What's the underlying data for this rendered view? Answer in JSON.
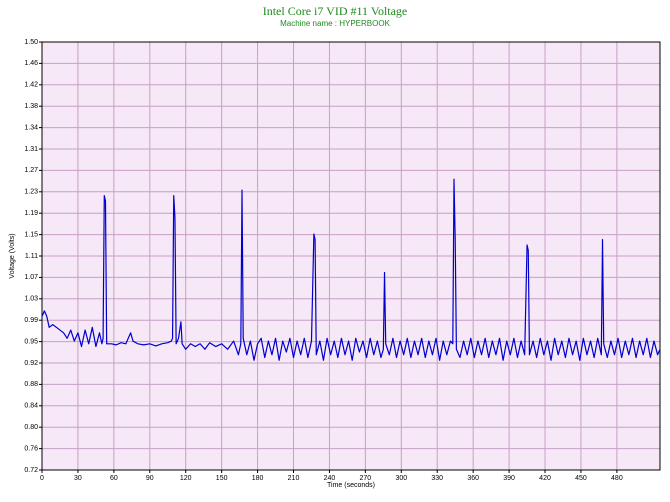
{
  "chart_data": {
    "type": "line",
    "title": "Intel Core i7 VID #11 Voltage",
    "subtitle": "Machine name : HYPERBOOK",
    "x_label": "Time (seconds)",
    "y_label": "Voltage (Volts)",
    "xlim": [
      0,
      516
    ],
    "ylim": [
      0.72,
      1.5
    ],
    "xticks": [
      0,
      30,
      60,
      90,
      120,
      150,
      180,
      210,
      240,
      270,
      300,
      330,
      360,
      390,
      420,
      450,
      480
    ],
    "yticks": [
      0.72,
      {
        "value": 0.759,
        "label": "0.76"
      },
      {
        "value": 0.798,
        "label": "0.80"
      },
      {
        "value": 0.837,
        "label": "0.84"
      },
      {
        "value": 0.876,
        "label": "0.88"
      },
      {
        "value": 0.915,
        "label": "0.92"
      },
      {
        "value": 0.954,
        "label": "0.95"
      },
      {
        "value": 0.993,
        "label": "0.99"
      },
      {
        "value": 1.032,
        "label": "1.03"
      },
      {
        "value": 1.071,
        "label": "1.07"
      },
      1.11,
      {
        "value": 1.149,
        "label": "1.15"
      },
      {
        "value": 1.188,
        "label": "1.19"
      },
      {
        "value": 1.227,
        "label": "1.23"
      },
      {
        "value": 1.266,
        "label": "1.27"
      },
      {
        "value": 1.305,
        "label": "1.31"
      },
      {
        "value": 1.344,
        "label": "1.34"
      },
      {
        "value": 1.383,
        "label": "1.38"
      },
      {
        "value": 1.422,
        "label": "1.42"
      },
      {
        "value": 1.461,
        "label": "1.46"
      },
      {
        "value": 1.5,
        "label": "1.50"
      }
    ],
    "grid": true,
    "background": "#f6e8f6",
    "series": [
      {
        "name": "VID #11",
        "color": "#0000cc",
        "x": [
          0,
          2,
          4,
          6,
          9,
          12,
          15,
          18,
          21,
          24,
          27,
          30,
          33,
          36,
          39,
          42,
          45,
          48,
          50,
          51,
          52,
          53,
          54,
          58,
          62,
          66,
          70,
          74,
          76,
          80,
          85,
          90,
          95,
          100,
          105,
          108,
          109,
          110,
          111,
          112,
          114,
          116,
          117,
          120,
          124,
          128,
          132,
          136,
          140,
          145,
          150,
          155,
          160,
          164,
          166,
          167,
          168,
          171,
          174,
          177,
          180,
          183,
          186,
          189,
          192,
          195,
          198,
          201,
          204,
          207,
          210,
          213,
          216,
          219,
          222,
          225,
          227,
          228,
          229,
          232,
          235,
          238,
          241,
          244,
          247,
          250,
          253,
          256,
          259,
          262,
          265,
          268,
          271,
          274,
          277,
          280,
          283,
          285,
          286,
          287,
          290,
          293,
          296,
          299,
          302,
          305,
          308,
          311,
          314,
          317,
          320,
          323,
          326,
          329,
          332,
          335,
          338,
          341,
          343,
          344,
          345,
          346,
          349,
          352,
          355,
          358,
          361,
          364,
          367,
          370,
          373,
          376,
          379,
          382,
          385,
          388,
          391,
          394,
          397,
          400,
          403,
          405,
          406,
          407,
          410,
          413,
          416,
          419,
          422,
          425,
          428,
          431,
          434,
          437,
          440,
          443,
          446,
          449,
          452,
          455,
          458,
          461,
          464,
          467,
          468,
          469,
          472,
          475,
          478,
          481,
          484,
          487,
          490,
          493,
          496,
          499,
          502,
          505,
          508,
          511,
          514,
          516
        ],
        "values": [
          1.0,
          1.01,
          1.0,
          0.98,
          0.985,
          0.98,
          0.975,
          0.97,
          0.96,
          0.975,
          0.955,
          0.97,
          0.945,
          0.975,
          0.95,
          0.98,
          0.945,
          0.97,
          0.95,
          0.96,
          1.22,
          1.21,
          0.95,
          0.95,
          0.948,
          0.952,
          0.95,
          0.97,
          0.955,
          0.95,
          0.948,
          0.95,
          0.946,
          0.95,
          0.952,
          0.955,
          0.96,
          1.22,
          1.18,
          0.95,
          0.96,
          0.99,
          0.95,
          0.94,
          0.95,
          0.945,
          0.95,
          0.94,
          0.952,
          0.945,
          0.95,
          0.94,
          0.955,
          0.93,
          0.95,
          1.23,
          0.96,
          0.93,
          0.955,
          0.92,
          0.95,
          0.96,
          0.925,
          0.955,
          0.93,
          0.96,
          0.92,
          0.955,
          0.935,
          0.96,
          0.925,
          0.955,
          0.93,
          0.96,
          0.925,
          0.955,
          1.15,
          1.14,
          0.93,
          0.955,
          0.92,
          0.96,
          0.93,
          0.955,
          0.925,
          0.96,
          0.93,
          0.955,
          0.92,
          0.96,
          0.935,
          0.955,
          0.925,
          0.96,
          0.93,
          0.955,
          0.925,
          0.94,
          1.08,
          0.95,
          0.93,
          0.96,
          0.925,
          0.955,
          0.93,
          0.96,
          0.925,
          0.955,
          0.93,
          0.96,
          0.925,
          0.955,
          0.93,
          0.96,
          0.92,
          0.955,
          0.93,
          0.955,
          0.95,
          1.25,
          1.14,
          0.94,
          0.925,
          0.955,
          0.93,
          0.96,
          0.925,
          0.955,
          0.93,
          0.96,
          0.925,
          0.955,
          0.93,
          0.96,
          0.92,
          0.955,
          0.93,
          0.96,
          0.925,
          0.955,
          0.93,
          1.13,
          1.12,
          0.93,
          0.955,
          0.925,
          0.96,
          0.93,
          0.955,
          0.92,
          0.96,
          0.93,
          0.955,
          0.925,
          0.96,
          0.93,
          0.955,
          0.92,
          0.96,
          0.93,
          0.955,
          0.925,
          0.96,
          0.93,
          1.14,
          0.95,
          0.925,
          0.955,
          0.93,
          0.96,
          0.925,
          0.955,
          0.93,
          0.96,
          0.925,
          0.955,
          0.93,
          0.96,
          0.925,
          0.955,
          0.93,
          0.94
        ]
      }
    ]
  }
}
